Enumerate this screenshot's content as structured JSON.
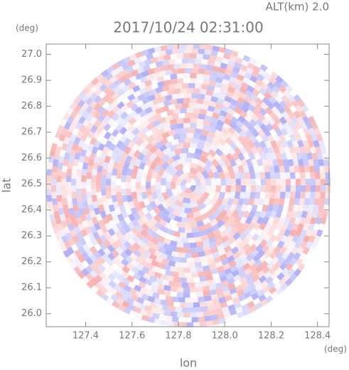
{
  "chart_data": {
    "type": "radar-field",
    "title": "2017/10/24 02:31:00",
    "subtitle": "ALT(km) 2.0",
    "x_label": "lon",
    "y_label": "lat",
    "x_unit": "(deg)",
    "y_unit": "(deg)",
    "xlim": [
      127.23,
      128.45
    ],
    "ylim": [
      25.95,
      27.04
    ],
    "xticks": [
      {
        "value": 127.4,
        "label": "127.4"
      },
      {
        "value": 127.6,
        "label": "127.6"
      },
      {
        "value": 127.8,
        "label": "127.8"
      },
      {
        "value": 128.0,
        "label": "128.0"
      },
      {
        "value": 128.2,
        "label": "128.2"
      },
      {
        "value": 128.4,
        "label": "128.4"
      }
    ],
    "yticks": [
      {
        "value": 26.0,
        "label": "26.0"
      },
      {
        "value": 26.1,
        "label": "26.1"
      },
      {
        "value": 26.2,
        "label": "26.2"
      },
      {
        "value": 26.3,
        "label": "26.3"
      },
      {
        "value": 26.4,
        "label": "26.4"
      },
      {
        "value": 26.5,
        "label": "26.5"
      },
      {
        "value": 26.6,
        "label": "26.6"
      },
      {
        "value": 26.7,
        "label": "26.7"
      },
      {
        "value": 26.8,
        "label": "26.8"
      },
      {
        "value": 26.9,
        "label": "26.9"
      },
      {
        "value": 27.0,
        "label": "27.0"
      }
    ]
  }
}
